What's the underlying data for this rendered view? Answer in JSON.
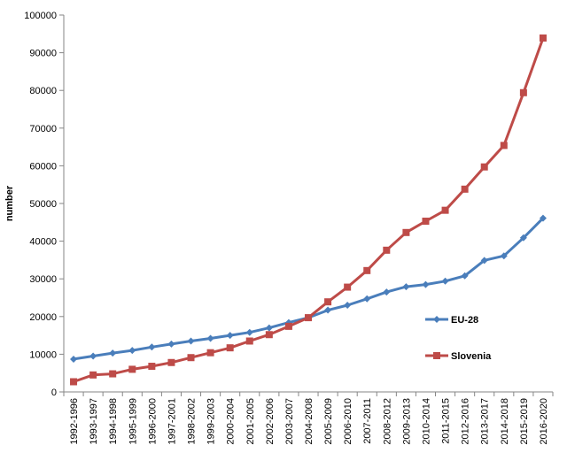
{
  "chart_data": {
    "type": "line",
    "title": "",
    "xlabel": "",
    "ylabel": "number",
    "ylim": [
      0,
      100000
    ],
    "yticks": [
      0,
      10000,
      20000,
      30000,
      40000,
      50000,
      60000,
      70000,
      80000,
      90000,
      100000
    ],
    "grid": false,
    "legend_position": "right",
    "categories": [
      "1992-1996",
      "1993-1997",
      "1994-1998",
      "1995-1999",
      "1996-2000",
      "1997-2001",
      "1998-2002",
      "1999-2003",
      "2000-2004",
      "2001-2005",
      "2002-2006",
      "2003-2007",
      "2004-2008",
      "2005-2009",
      "2006-2010",
      "2007-2011",
      "2008-2012",
      "2009-2013",
      "2010-2014",
      "2011-2015",
      "2012-2016",
      "2013-2017",
      "2014-2018",
      "2015-2019",
      "2016-2020"
    ],
    "series": [
      {
        "name": "EU-28",
        "color": "#4a7ebb",
        "marker": "diamond",
        "values": [
          8700,
          9500,
          10300,
          11000,
          11900,
          12700,
          13500,
          14200,
          15000,
          15800,
          17000,
          18400,
          19700,
          21700,
          23000,
          24700,
          26500,
          27900,
          28500,
          29400,
          30800,
          34900,
          36100,
          40900,
          46100
        ]
      },
      {
        "name": "Slovenia",
        "color": "#be4b48",
        "marker": "square",
        "values": [
          2700,
          4500,
          4800,
          6000,
          6800,
          7800,
          9100,
          10400,
          11700,
          13500,
          15200,
          17400,
          19700,
          23900,
          27800,
          32200,
          37600,
          42300,
          45300,
          48200,
          53800,
          59700,
          65400,
          79400,
          93900
        ]
      }
    ]
  }
}
